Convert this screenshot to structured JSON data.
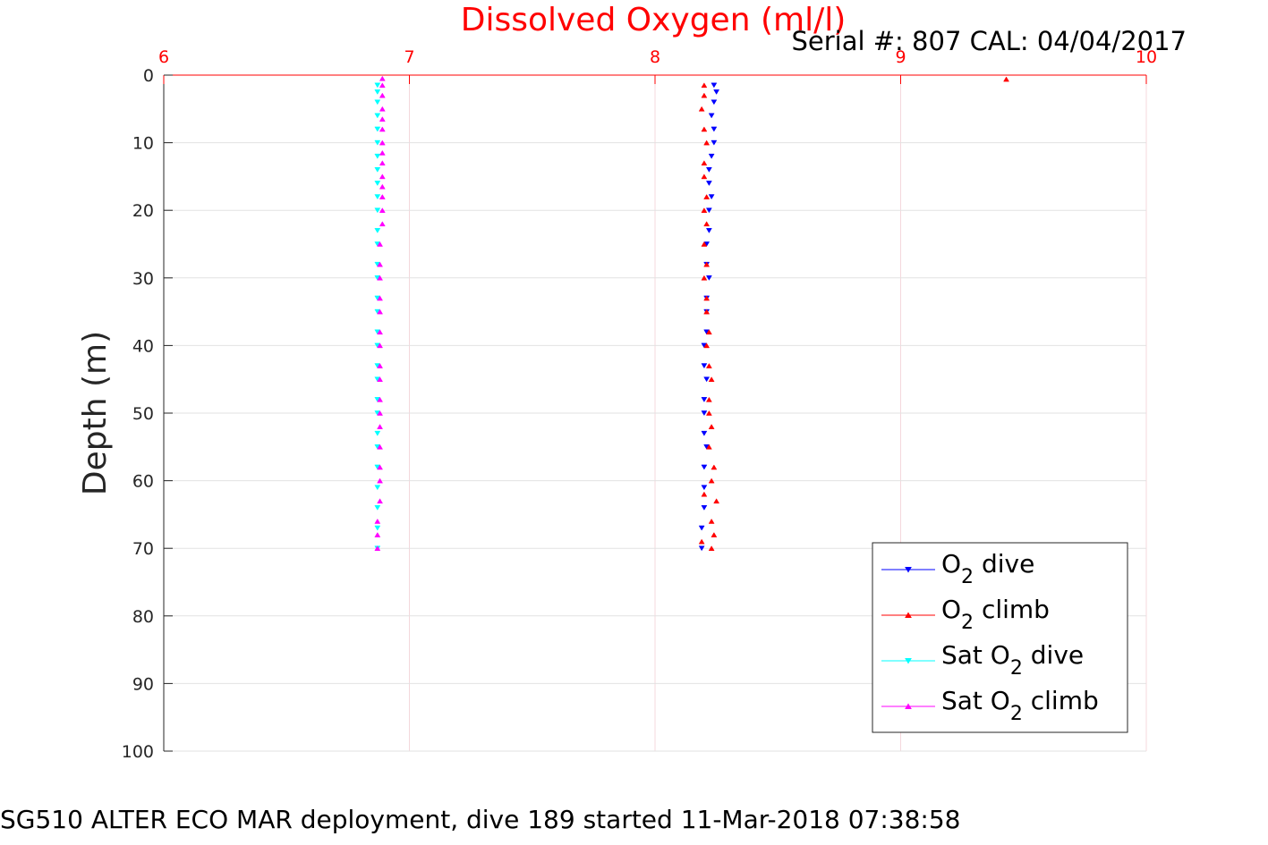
{
  "chart_data": {
    "type": "scatter",
    "title": "Dissolved Oxygen (ml/l)",
    "subtitle": "Serial #: 807  CAL: 04/04/2017",
    "xlabel": "",
    "ylabel": "Depth (m)",
    "caption": "SG510 ALTER ECO MAR deployment, dive 189 started 11-Mar-2018 07:38:58",
    "xlim": [
      6,
      10
    ],
    "ylim": [
      0,
      100
    ],
    "y_reversed": true,
    "x_axis_position": "top",
    "x_ticks": [
      6,
      7,
      8,
      9,
      10
    ],
    "y_ticks": [
      0,
      10,
      20,
      30,
      40,
      50,
      60,
      70,
      80,
      90,
      100
    ],
    "grid": true,
    "legend_position": "bottom-right",
    "colors": {
      "title": "#ff0000",
      "x_axis": "#ff0000",
      "grid": "#e0e0e0",
      "text": "#000000"
    },
    "series": [
      {
        "name": "O2 dive",
        "legend_main": "O",
        "legend_sub": "2",
        "legend_rest": " dive",
        "color": "#0000ff",
        "marker": "triangle-down",
        "x": [
          8.24,
          8.25,
          8.24,
          8.23,
          8.24,
          8.24,
          8.23,
          8.22,
          8.22,
          8.23,
          8.22,
          8.22,
          8.21,
          8.21,
          8.22,
          8.21,
          8.21,
          8.21,
          8.2,
          8.2,
          8.21,
          8.2,
          8.2,
          8.2,
          8.21,
          8.2,
          8.2,
          8.2,
          8.19,
          8.19
        ],
        "y": [
          1.5,
          2.5,
          4,
          6,
          8,
          10,
          12,
          14,
          16,
          18,
          20,
          23,
          25,
          28,
          30,
          33,
          35,
          38,
          40,
          43,
          45,
          48,
          50,
          53,
          55,
          58,
          61,
          64,
          67,
          70
        ]
      },
      {
        "name": "O2 climb",
        "legend_main": "O",
        "legend_sub": "2",
        "legend_rest": " climb",
        "color": "#ff0000",
        "marker": "triangle-up",
        "x": [
          8.23,
          8.24,
          8.23,
          8.25,
          8.23,
          8.24,
          8.22,
          8.23,
          8.22,
          8.22,
          8.23,
          8.22,
          8.21,
          8.22,
          8.21,
          8.21,
          8.2,
          8.21,
          8.2,
          8.21,
          8.2,
          8.21,
          8.2,
          8.2,
          8.21,
          8.2,
          8.19,
          8.2,
          8.2,
          8.19,
          8.2,
          9.43
        ],
        "y": [
          70,
          68,
          66,
          63,
          60,
          58,
          55,
          52,
          50,
          48,
          45,
          43,
          40,
          38,
          35,
          33,
          30,
          28,
          25,
          22,
          20,
          18,
          15,
          13,
          10,
          8,
          5,
          3,
          1.5,
          69,
          62,
          0.6
        ]
      },
      {
        "name": "Sat O2 dive",
        "legend_main": "Sat O",
        "legend_sub": "2",
        "legend_rest": " dive",
        "color": "#00ffff",
        "marker": "triangle-down",
        "x": [
          6.87,
          6.87,
          6.87,
          6.87,
          6.87,
          6.87,
          6.87,
          6.87,
          6.87,
          6.87,
          6.87,
          6.87,
          6.87,
          6.87,
          6.87,
          6.87,
          6.87,
          6.87,
          6.87,
          6.87,
          6.87,
          6.87,
          6.87,
          6.87,
          6.87,
          6.87,
          6.87,
          6.87,
          6.87,
          6.87
        ],
        "y": [
          1.5,
          2.5,
          4,
          6,
          8,
          10,
          12,
          14,
          16,
          18,
          20,
          23,
          25,
          28,
          30,
          33,
          35,
          38,
          40,
          43,
          45,
          48,
          50,
          53,
          55,
          58,
          61,
          64,
          67,
          70
        ]
      },
      {
        "name": "Sat O2 climb",
        "legend_main": "Sat O",
        "legend_sub": "2",
        "legend_rest": " climb",
        "color": "#ff00ff",
        "marker": "triangle-up",
        "x": [
          6.87,
          6.87,
          6.87,
          6.88,
          6.88,
          6.88,
          6.88,
          6.88,
          6.88,
          6.88,
          6.88,
          6.88,
          6.88,
          6.88,
          6.88,
          6.88,
          6.88,
          6.88,
          6.88,
          6.89,
          6.89,
          6.89,
          6.89,
          6.89,
          6.89,
          6.89,
          6.89,
          6.89,
          6.89,
          6.89,
          6.89,
          6.89,
          6.89
        ],
        "y": [
          70,
          68,
          66,
          63,
          60,
          58,
          55,
          52,
          50,
          48,
          45,
          43,
          40,
          38,
          35,
          33,
          30,
          28,
          25,
          22,
          20,
          18,
          15,
          13,
          10,
          8,
          5,
          3,
          1.5,
          0.5,
          6.5,
          11.5,
          16.5
        ]
      }
    ]
  }
}
